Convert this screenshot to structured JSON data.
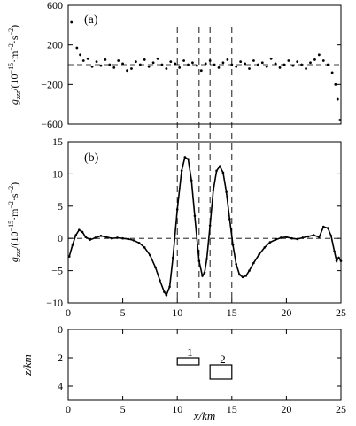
{
  "chart_data": [
    {
      "panel": "a",
      "type": "scatter",
      "label": "(a)",
      "ylabel": {
        "base": "g",
        "sub": "zzz",
        "unit": "/(10",
        "exp1": "−15",
        "unit2": "·m",
        "exp2": "−2",
        "unit3": "·s",
        "exp3": "−2",
        "close": ")"
      },
      "xlim": [
        0,
        25
      ],
      "ylim": [
        -600,
        600
      ],
      "yticks": [
        600,
        200,
        -200,
        -600
      ],
      "ytick_labels": [
        "600",
        "200",
        "−200",
        "−600"
      ],
      "zero_line": "dashed",
      "x": [
        0.3,
        0.8,
        1.1,
        1.4,
        1.8,
        2.2,
        2.6,
        3.0,
        3.4,
        3.8,
        4.2,
        4.6,
        5.0,
        5.4,
        5.8,
        6.2,
        6.6,
        7.0,
        7.4,
        7.8,
        8.2,
        8.6,
        9.0,
        9.4,
        9.8,
        10.2,
        10.6,
        11.0,
        11.4,
        11.8,
        12.2,
        12.6,
        13.0,
        13.4,
        13.8,
        14.2,
        14.6,
        15.0,
        15.4,
        15.8,
        16.2,
        16.6,
        17.0,
        17.4,
        17.8,
        18.2,
        18.6,
        19.0,
        19.4,
        19.8,
        20.2,
        20.6,
        21.0,
        21.4,
        21.8,
        22.2,
        22.6,
        23.0,
        23.4,
        23.8,
        24.2,
        24.5,
        24.7,
        24.9
      ],
      "y": [
        430,
        170,
        100,
        40,
        60,
        -20,
        30,
        -10,
        50,
        0,
        -30,
        40,
        10,
        -60,
        -40,
        30,
        0,
        50,
        -20,
        20,
        60,
        0,
        -40,
        30,
        10,
        -30,
        40,
        0,
        20,
        -10,
        -60,
        10,
        40,
        0,
        -30,
        20,
        50,
        0,
        -20,
        30,
        10,
        -40,
        40,
        0,
        20,
        -20,
        60,
        10,
        -30,
        0,
        40,
        -10,
        30,
        0,
        -40,
        20,
        50,
        100,
        40,
        0,
        -80,
        -200,
        -350,
        -560
      ]
    },
    {
      "panel": "b",
      "type": "line",
      "label": "(b)",
      "ylabel": {
        "base": "g",
        "sub": "zzz",
        "unit": "/(10",
        "exp1": "−15",
        "unit2": "·m",
        "exp2": "−2",
        "unit3": "·s",
        "exp3": "−2",
        "close": ")"
      },
      "xlim": [
        0,
        25
      ],
      "ylim": [
        -10,
        15
      ],
      "yticks": [
        15,
        10,
        5,
        0,
        -5,
        -10
      ],
      "ytick_labels": [
        "15",
        "10",
        "5",
        "0",
        "−5",
        "−10"
      ],
      "zero_line": "dashed",
      "x": [
        0.1,
        0.4,
        0.7,
        1.0,
        1.3,
        1.6,
        2.0,
        2.5,
        3.0,
        3.5,
        4.0,
        4.5,
        5.0,
        5.5,
        6.0,
        6.5,
        7.0,
        7.5,
        8.0,
        8.4,
        8.8,
        9.0,
        9.3,
        9.6,
        10.0,
        10.4,
        10.7,
        11.0,
        11.3,
        11.6,
        12.0,
        12.3,
        12.5,
        12.7,
        13.0,
        13.3,
        13.6,
        13.9,
        14.2,
        14.5,
        14.8,
        15.1,
        15.4,
        15.7,
        16.0,
        16.3,
        16.6,
        17.0,
        17.5,
        18.0,
        18.5,
        19.0,
        19.5,
        20.0,
        20.5,
        21.0,
        21.5,
        22.0,
        22.5,
        23.0,
        23.4,
        23.8,
        24.1,
        24.4,
        24.6,
        24.8,
        25.0
      ],
      "y": [
        -2.8,
        -1.0,
        0.5,
        1.3,
        1.0,
        0.2,
        -0.2,
        0.1,
        0.4,
        0.2,
        0.0,
        0.1,
        0.0,
        -0.1,
        -0.3,
        -0.7,
        -1.4,
        -2.6,
        -4.5,
        -6.5,
        -8.3,
        -8.8,
        -7.5,
        -3.0,
        4.5,
        10.5,
        12.6,
        12.3,
        9.0,
        3.5,
        -3.5,
        -5.8,
        -5.3,
        -3.2,
        2.0,
        7.5,
        10.5,
        11.2,
        10.2,
        7.2,
        3.0,
        -1.0,
        -4.0,
        -5.6,
        -6.0,
        -5.8,
        -5.0,
        -3.8,
        -2.5,
        -1.4,
        -0.6,
        -0.2,
        0.1,
        0.2,
        0.0,
        -0.1,
        0.1,
        0.3,
        0.5,
        0.2,
        1.8,
        1.6,
        0.4,
        -2.0,
        -3.5,
        -3.0,
        -3.5
      ]
    },
    {
      "panel": "c",
      "type": "diagram",
      "ylabel": "z/km",
      "xlabel": "x/km",
      "xlim": [
        0,
        25
      ],
      "ylim": [
        0,
        5
      ],
      "yticks": [
        0,
        2,
        4
      ],
      "ytick_labels": [
        "0",
        "2",
        "4"
      ],
      "xticks": [
        0,
        5,
        10,
        15,
        20,
        25
      ],
      "xtick_labels": [
        "0",
        "5",
        "10",
        "15",
        "20",
        "25"
      ],
      "bodies": [
        {
          "label": "1",
          "x0": 10.0,
          "x1": 12.0,
          "z0": 2.0,
          "z1": 2.5
        },
        {
          "label": "2",
          "x0": 13.0,
          "x1": 15.0,
          "z0": 2.5,
          "z1": 3.5
        }
      ]
    }
  ],
  "vertical_markers": [
    10,
    12,
    13,
    15
  ]
}
